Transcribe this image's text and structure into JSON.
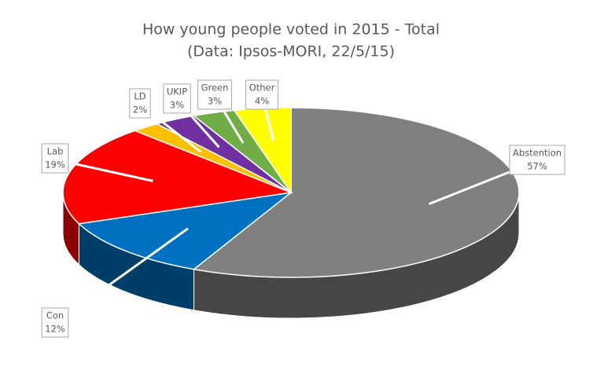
{
  "chart_data": {
    "type": "pie",
    "title": "How young people voted in 2015 - Total",
    "subtitle": "(Data: Ipsos-MORI, 22/5/15)",
    "categories": [
      "Abstention",
      "Con",
      "Lab",
      "LD",
      "UKIP",
      "Green",
      "Other"
    ],
    "values": [
      57,
      12,
      19,
      2,
      3,
      3,
      4
    ],
    "value_labels": [
      "57%",
      "12%",
      "19%",
      "2%",
      "3%",
      "3%",
      "4%"
    ],
    "colors": [
      "#808080",
      "#0070c0",
      "#ff0000",
      "#ffc000",
      "#7030a0",
      "#70ad47",
      "#ffff00"
    ]
  }
}
